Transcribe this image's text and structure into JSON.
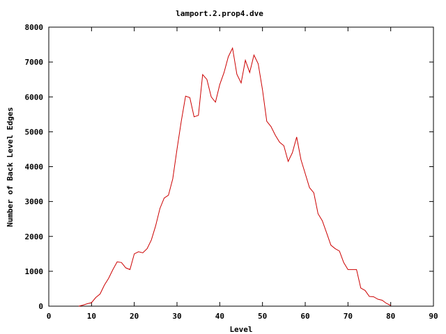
{
  "chart_data": {
    "type": "line",
    "title": "lamport.2.prop4.dve",
    "xlabel": "Level",
    "ylabel": "Number of Back Level Edges",
    "xlim": [
      0,
      90
    ],
    "ylim": [
      0,
      8000
    ],
    "xticks": [
      0,
      10,
      20,
      30,
      40,
      50,
      60,
      70,
      80,
      90
    ],
    "yticks": [
      0,
      1000,
      2000,
      3000,
      4000,
      5000,
      6000,
      7000,
      8000
    ],
    "grid": false,
    "line_color": "#cc0000",
    "series": [
      {
        "x": [
          7,
          8,
          9,
          10,
          11,
          12,
          13,
          14,
          15,
          16,
          17,
          18,
          19,
          20,
          21,
          22,
          23,
          24,
          25,
          26,
          27,
          28,
          29,
          30,
          31,
          32,
          33,
          34,
          35,
          36,
          37,
          38,
          39,
          40,
          41,
          42,
          43,
          44,
          45,
          46,
          47,
          48,
          49,
          50,
          51,
          52,
          53,
          54,
          55,
          56,
          57,
          58,
          59,
          60,
          61,
          62,
          63,
          64,
          65,
          66,
          67,
          68,
          69,
          70,
          71,
          72,
          73,
          74,
          75,
          76,
          77,
          78,
          79,
          80
        ],
        "y": [
          0,
          30,
          70,
          100,
          250,
          350,
          600,
          800,
          1050,
          1270,
          1250,
          1100,
          1050,
          1500,
          1560,
          1530,
          1650,
          1900,
          2300,
          2800,
          3100,
          3180,
          3650,
          4500,
          5300,
          6020,
          5980,
          5430,
          5470,
          6640,
          6500,
          6000,
          5850,
          6350,
          6700,
          7150,
          7400,
          6650,
          6400,
          7050,
          6700,
          7200,
          6950,
          6200,
          5300,
          5150,
          4900,
          4700,
          4600,
          4150,
          4400,
          4850,
          4200,
          3800,
          3400,
          3250,
          2650,
          2450,
          2100,
          1750,
          1650,
          1580,
          1250,
          1050,
          1050,
          1050,
          520,
          450,
          280,
          270,
          200,
          170,
          80,
          20
        ]
      }
    ]
  }
}
